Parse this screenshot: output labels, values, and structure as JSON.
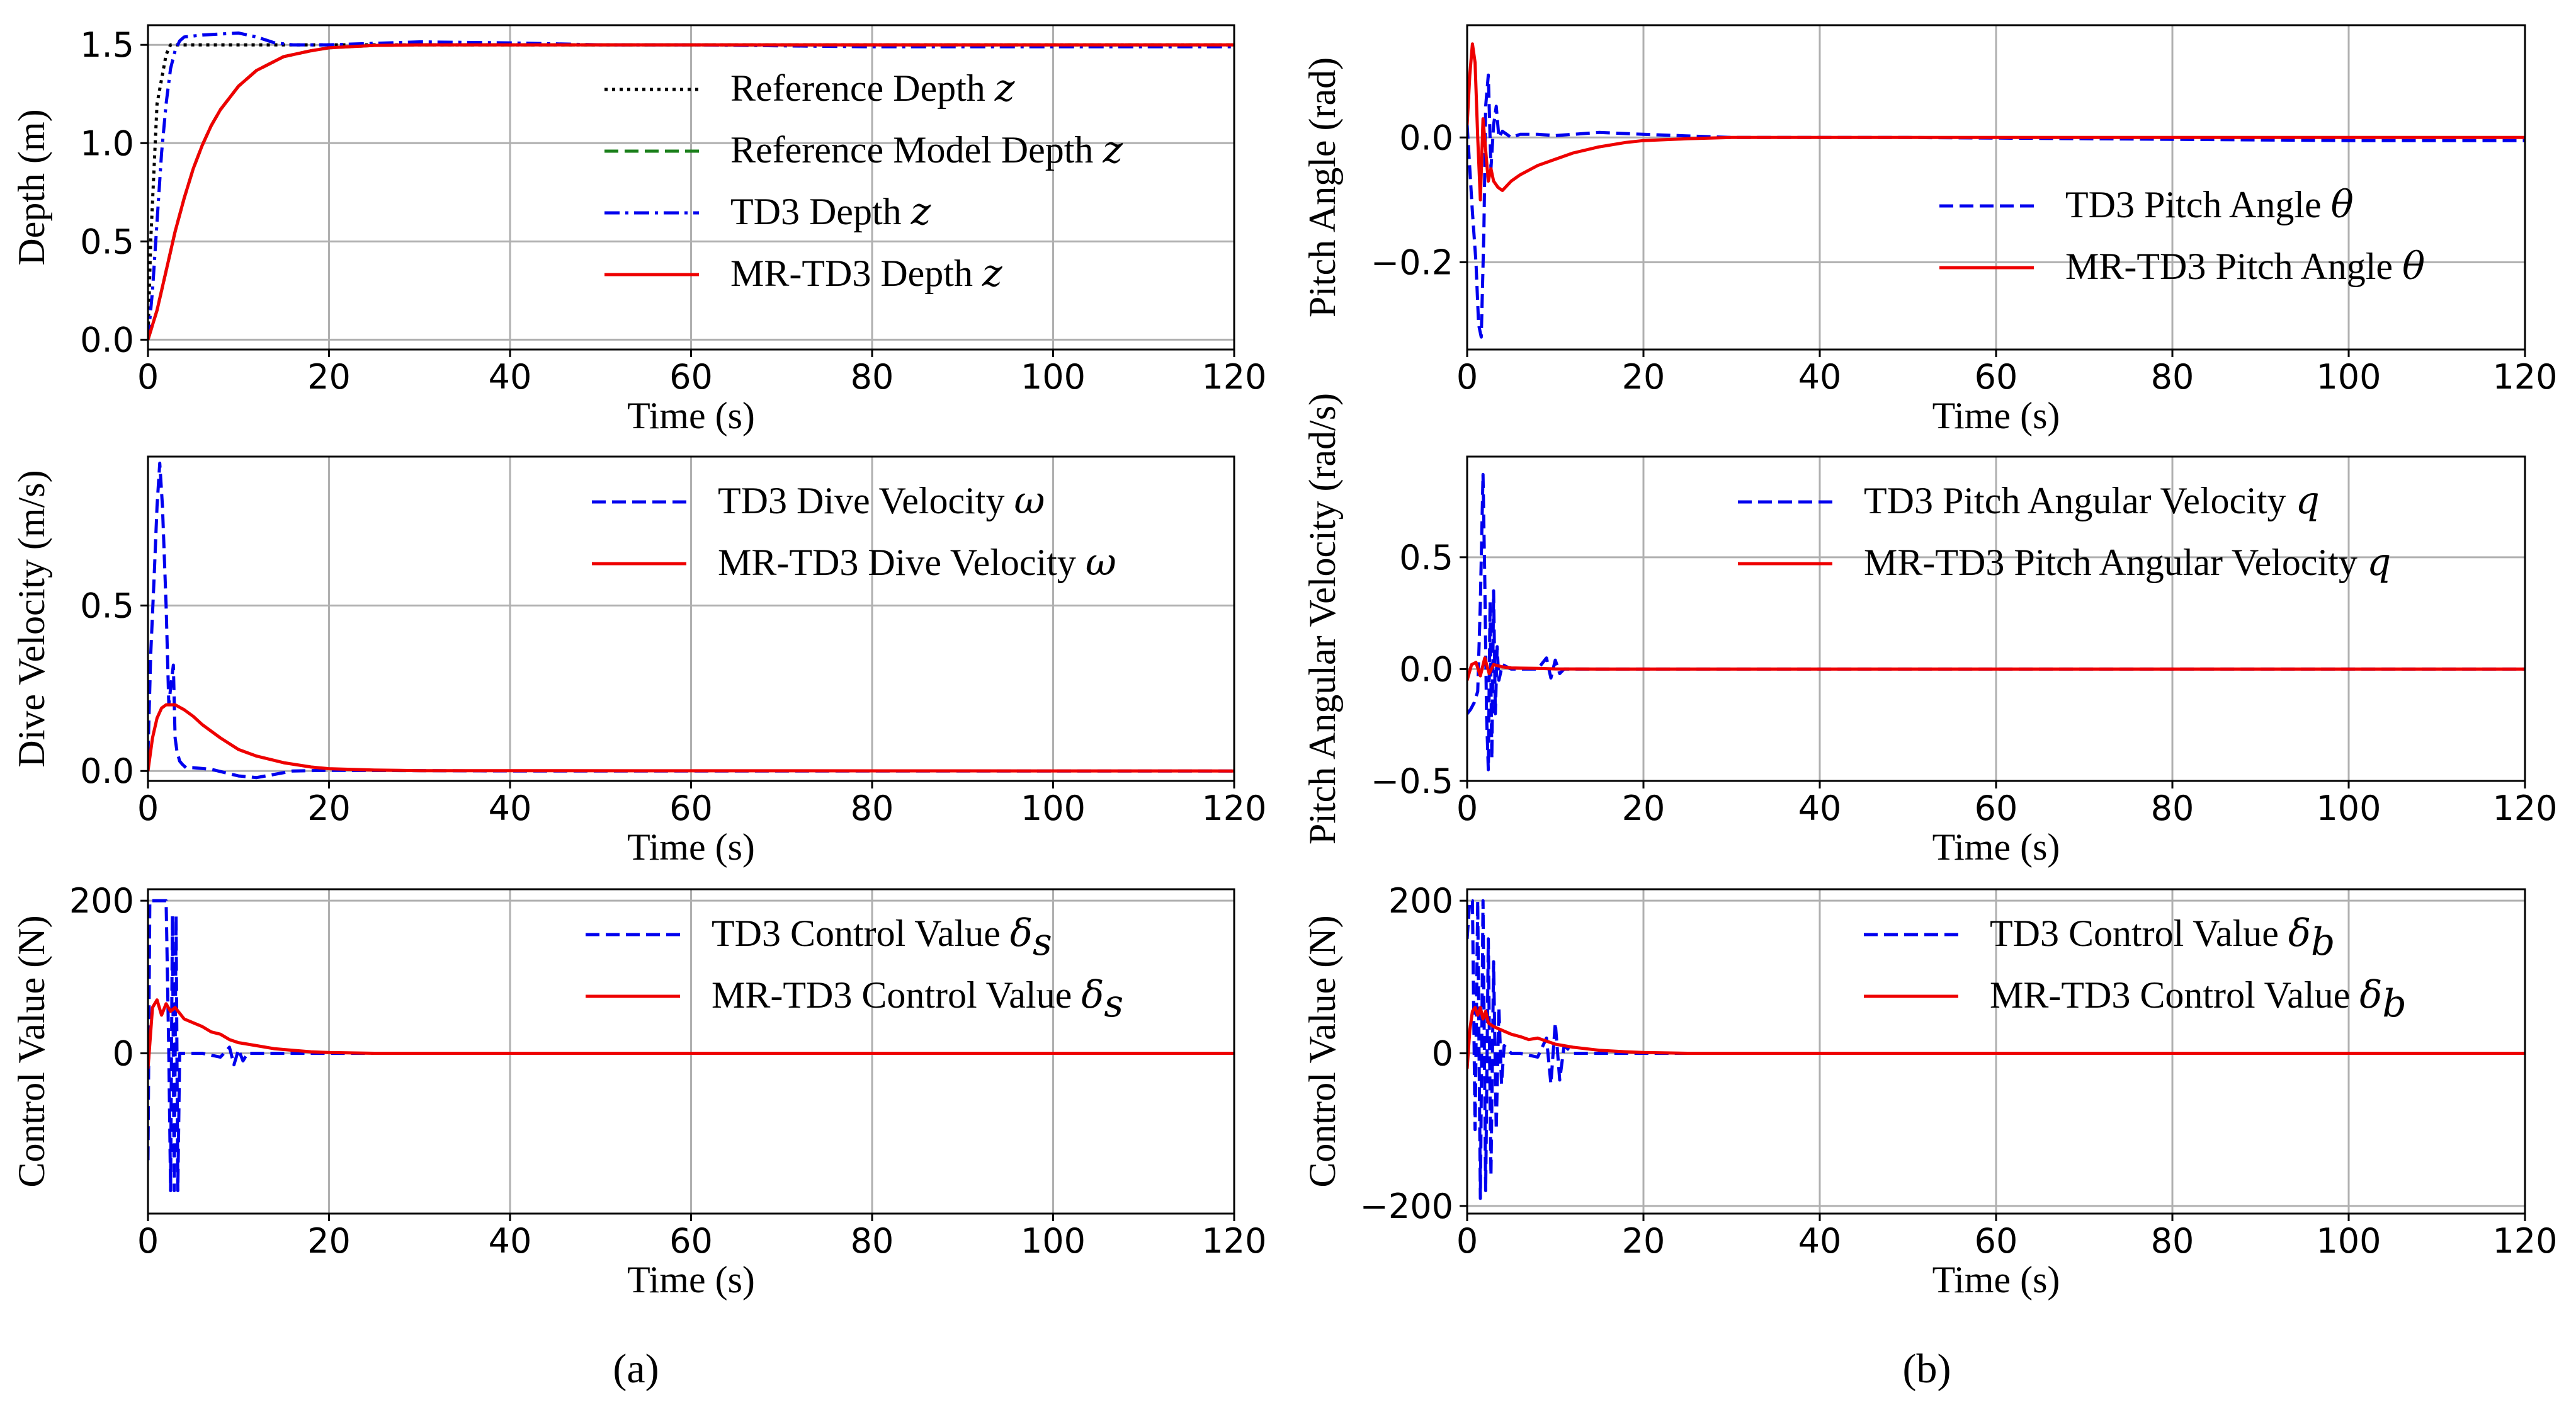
{
  "colors": {
    "reference": "#000000",
    "reference_model": "#1a7f1a",
    "td3": "#0000ee",
    "mrtd3": "#ee0000"
  },
  "captions": {
    "a": "(a)",
    "b": "(b)"
  },
  "chart_data": [
    {
      "id": "a1",
      "type": "line",
      "xlabel": "Time (s)",
      "ylabel": "Depth (m)",
      "xlim": [
        0,
        120
      ],
      "ylim": [
        -0.05,
        1.6
      ],
      "xticks": [
        0,
        20,
        40,
        60,
        80,
        100,
        120
      ],
      "xtick_labels": [
        "0",
        "20",
        "40",
        "60",
        "80",
        "100",
        "120"
      ],
      "yticks": [
        0,
        0.5,
        1.0,
        1.5
      ],
      "ytick_labels": [
        "0.0",
        "0.5",
        "1.0",
        "1.5"
      ],
      "legend_position": "center-right",
      "series": [
        {
          "name": "Reference Depth",
          "symbol": "z",
          "color": "#000000",
          "style": "dotted",
          "x": [
            0,
            0.3,
            1,
            2,
            2.5,
            120
          ],
          "y": [
            0,
            0.5,
            1.2,
            1.45,
            1.5,
            1.5
          ]
        },
        {
          "name": "Reference Model Depth",
          "symbol": "z",
          "color": "#1a7f1a",
          "style": "dashed",
          "x": [
            0,
            1,
            2,
            3,
            4,
            5,
            6,
            7,
            8,
            10,
            12,
            15,
            18,
            20,
            25,
            30,
            40,
            120
          ],
          "y": [
            0,
            0.15,
            0.35,
            0.55,
            0.72,
            0.87,
            0.99,
            1.09,
            1.17,
            1.29,
            1.37,
            1.44,
            1.47,
            1.485,
            1.497,
            1.5,
            1.5,
            1.5
          ]
        },
        {
          "name": "TD3 Depth",
          "symbol": "z",
          "color": "#0000ee",
          "style": "dashdot",
          "x": [
            0,
            0.5,
            1,
            1.5,
            2,
            2.5,
            3,
            3.5,
            4,
            6,
            8,
            10,
            12,
            14,
            16,
            20,
            30,
            40,
            50,
            60,
            80,
            100,
            120
          ],
          "y": [
            0,
            0.25,
            0.6,
            0.95,
            1.2,
            1.38,
            1.47,
            1.52,
            1.54,
            1.55,
            1.555,
            1.56,
            1.54,
            1.51,
            1.5,
            1.5,
            1.515,
            1.51,
            1.5,
            1.5,
            1.49,
            1.49,
            1.49
          ]
        },
        {
          "name": "MR-TD3 Depth",
          "symbol": "z",
          "color": "#ee0000",
          "style": "solid",
          "x": [
            0,
            1,
            2,
            3,
            4,
            5,
            6,
            7,
            8,
            10,
            12,
            15,
            18,
            20,
            25,
            30,
            40,
            60,
            80,
            100,
            120
          ],
          "y": [
            0,
            0.15,
            0.35,
            0.55,
            0.72,
            0.87,
            0.99,
            1.09,
            1.17,
            1.29,
            1.37,
            1.44,
            1.47,
            1.485,
            1.497,
            1.5,
            1.5,
            1.5,
            1.5,
            1.5,
            1.5
          ]
        }
      ]
    },
    {
      "id": "a2",
      "type": "line",
      "xlabel": "Time (s)",
      "ylabel": "Dive Velocity (m/s)",
      "xlim": [
        0,
        120
      ],
      "ylim": [
        -0.03,
        0.95
      ],
      "xticks": [
        0,
        20,
        40,
        60,
        80,
        100,
        120
      ],
      "xtick_labels": [
        "0",
        "20",
        "40",
        "60",
        "80",
        "100",
        "120"
      ],
      "yticks": [
        0,
        0.5
      ],
      "ytick_labels": [
        "0.0",
        "0.5"
      ],
      "legend_position": "top-right",
      "series": [
        {
          "name": "TD3 Dive Velocity",
          "symbol": "ω",
          "color": "#0000ee",
          "style": "dashed",
          "x": [
            0,
            0.3,
            0.7,
            1.0,
            1.3,
            1.6,
            2.0,
            2.3,
            2.5,
            2.8,
            3.0,
            3.2,
            3.5,
            3.8,
            4.2,
            5,
            7,
            10,
            12,
            14,
            16,
            20,
            40,
            60,
            80,
            100,
            120
          ],
          "y": [
            0.05,
            0.35,
            0.6,
            0.8,
            0.93,
            0.8,
            0.5,
            0.2,
            0.25,
            0.32,
            0.1,
            0.06,
            0.03,
            0.02,
            0.01,
            0.01,
            0.005,
            -0.015,
            -0.02,
            -0.01,
            0,
            0.002,
            0,
            0,
            0,
            0,
            0
          ]
        },
        {
          "name": "MR-TD3 Dive Velocity",
          "symbol": "ω",
          "color": "#ee0000",
          "style": "solid",
          "x": [
            0,
            0.5,
            1,
            1.5,
            2,
            2.5,
            3,
            4,
            5,
            6,
            8,
            10,
            12,
            15,
            18,
            20,
            25,
            30,
            120
          ],
          "y": [
            0,
            0.1,
            0.16,
            0.19,
            0.2,
            0.2,
            0.2,
            0.185,
            0.165,
            0.14,
            0.1,
            0.065,
            0.045,
            0.025,
            0.012,
            0.007,
            0.003,
            0.001,
            0
          ]
        }
      ]
    },
    {
      "id": "a3",
      "type": "line",
      "xlabel": "Time (s)",
      "ylabel": "Control Value (N)",
      "xlim": [
        0,
        120
      ],
      "ylim": [
        -210,
        215
      ],
      "xticks": [
        0,
        20,
        40,
        60,
        80,
        100,
        120
      ],
      "xtick_labels": [
        "0",
        "20",
        "40",
        "60",
        "80",
        "100",
        "120"
      ],
      "yticks": [
        0,
        200
      ],
      "ytick_labels": [
        "0",
        "200"
      ],
      "legend_position": "top-right",
      "series": [
        {
          "name": "TD3 Control Value",
          "symbol": "δ",
          "subscript": "s",
          "color": "#0000ee",
          "style": "dashed",
          "x": [
            0,
            0.2,
            0.4,
            0.6,
            1.0,
            1.5,
            2.0,
            2.3,
            2.5,
            2.7,
            2.9,
            3.1,
            3.3,
            3.5,
            3.8,
            4.2,
            5,
            6,
            8,
            9,
            9.5,
            10,
            10.5,
            11,
            12,
            14,
            16,
            18,
            20,
            120
          ],
          "y": [
            -140,
            200,
            200,
            200,
            200,
            200,
            200,
            0,
            -180,
            180,
            -180,
            180,
            -180,
            0,
            0,
            0,
            0,
            0,
            -5,
            8,
            -15,
            5,
            -10,
            0,
            0,
            0,
            0,
            0,
            0,
            0
          ]
        },
        {
          "name": "MR-TD3 Control Value",
          "symbol": "δ",
          "subscript": "s",
          "color": "#ee0000",
          "style": "solid",
          "x": [
            0,
            0.5,
            1.0,
            1.5,
            2.0,
            2.5,
            3.0,
            4,
            5,
            6,
            7,
            8,
            9,
            10,
            12,
            14,
            16,
            18,
            20,
            25,
            120
          ],
          "y": [
            -20,
            60,
            70,
            50,
            65,
            55,
            60,
            45,
            40,
            35,
            28,
            25,
            18,
            14,
            10,
            6,
            4,
            2,
            1,
            0,
            0
          ]
        }
      ]
    },
    {
      "id": "b1",
      "type": "line",
      "xlabel": "Time (s)",
      "ylabel": "Pitch Angle (rad)",
      "xlim": [
        0,
        120
      ],
      "ylim": [
        -0.34,
        0.18
      ],
      "xticks": [
        0,
        20,
        40,
        60,
        80,
        100,
        120
      ],
      "xtick_labels": [
        "0",
        "20",
        "40",
        "60",
        "80",
        "100",
        "120"
      ],
      "yticks": [
        -0.2,
        0.0
      ],
      "ytick_labels": [
        "−0.2",
        "0.0"
      ],
      "legend_position": "center-right",
      "series": [
        {
          "name": "TD3 Pitch Angle",
          "symbol": "θ",
          "color": "#0000ee",
          "style": "dashed",
          "x": [
            0,
            0.3,
            0.6,
            1.0,
            1.3,
            1.6,
            1.9,
            2.1,
            2.4,
            2.7,
            3.0,
            3.3,
            3.6,
            4.0,
            5,
            6,
            8,
            10,
            15,
            20,
            30,
            50,
            80,
            100,
            120
          ],
          "y": [
            0.02,
            -0.05,
            -0.12,
            -0.2,
            -0.3,
            -0.32,
            -0.15,
            0.05,
            0.1,
            -0.05,
            0.02,
            0.05,
            0.0,
            0.01,
            0.0,
            0.005,
            0.005,
            0.003,
            0.008,
            0.005,
            0.0,
            0.0,
            -0.003,
            -0.005,
            -0.005
          ]
        },
        {
          "name": "MR-TD3 Pitch Angle",
          "symbol": "θ",
          "color": "#ee0000",
          "style": "solid",
          "x": [
            0,
            0.3,
            0.6,
            0.9,
            1.2,
            1.5,
            1.8,
            2.1,
            2.4,
            2.7,
            3.0,
            3.5,
            4.0,
            5,
            6,
            8,
            10,
            12,
            15,
            18,
            20,
            25,
            30,
            40,
            60,
            120
          ],
          "y": [
            0.02,
            0.1,
            0.15,
            0.12,
            0.0,
            -0.1,
            0.03,
            -0.02,
            -0.07,
            -0.05,
            -0.07,
            -0.08,
            -0.085,
            -0.07,
            -0.06,
            -0.045,
            -0.035,
            -0.025,
            -0.015,
            -0.008,
            -0.005,
            -0.002,
            0,
            0,
            0,
            0
          ]
        }
      ]
    },
    {
      "id": "b2",
      "type": "line",
      "xlabel": "Time (s)",
      "ylabel": "Pitch Angular Velocity (rad/s)",
      "xlim": [
        0,
        120
      ],
      "ylim": [
        -0.5,
        0.95
      ],
      "xticks": [
        0,
        20,
        40,
        60,
        80,
        100,
        120
      ],
      "xtick_labels": [
        "0",
        "20",
        "40",
        "60",
        "80",
        "100",
        "120"
      ],
      "yticks": [
        -0.5,
        0.0,
        0.5
      ],
      "ytick_labels": [
        "−0.5",
        "0.0",
        "0.5"
      ],
      "legend_position": "top-right",
      "series": [
        {
          "name": "TD3 Pitch Angular Velocity",
          "symbol": "q",
          "color": "#0000ee",
          "style": "dashed",
          "x": [
            0,
            0.4,
            0.8,
            1.2,
            1.5,
            1.8,
            2.0,
            2.2,
            2.4,
            2.6,
            2.8,
            3.0,
            3.2,
            3.4,
            3.6,
            4.0,
            5,
            6,
            8,
            9,
            9.5,
            10,
            10.5,
            11,
            12,
            15,
            20,
            120
          ],
          "y": [
            -0.2,
            -0.18,
            -0.15,
            -0.1,
            0.3,
            0.87,
            0.4,
            -0.2,
            -0.45,
            0.3,
            -0.4,
            0.35,
            -0.2,
            0.1,
            -0.05,
            0.02,
            0.0,
            0.0,
            0.0,
            0.05,
            -0.04,
            0.04,
            -0.02,
            0.0,
            0.0,
            0.0,
            0.0,
            0.0
          ]
        },
        {
          "name": "MR-TD3 Pitch Angular Velocity",
          "symbol": "q",
          "color": "#ee0000",
          "style": "solid",
          "x": [
            0,
            0.5,
            1.0,
            1.5,
            2.0,
            2.5,
            3.0,
            4.0,
            5,
            8,
            10,
            15,
            20,
            120
          ],
          "y": [
            -0.05,
            0.02,
            0.03,
            -0.03,
            0.05,
            -0.02,
            0.02,
            0.01,
            0.005,
            0.003,
            0.001,
            0.0,
            0.0,
            0.0
          ]
        }
      ]
    },
    {
      "id": "b3",
      "type": "line",
      "xlabel": "Time (s)",
      "ylabel": "Control Value (N)",
      "xlim": [
        0,
        120
      ],
      "ylim": [
        -210,
        215
      ],
      "xticks": [
        0,
        20,
        40,
        60,
        80,
        100,
        120
      ],
      "xtick_labels": [
        "0",
        "20",
        "40",
        "60",
        "80",
        "100",
        "120"
      ],
      "yticks": [
        -200,
        0,
        200
      ],
      "ytick_labels": [
        "−200",
        "0",
        "200"
      ],
      "legend_position": "top-right",
      "series": [
        {
          "name": "TD3 Control Value",
          "symbol": "δ",
          "subscript": "b",
          "color": "#0000ee",
          "style": "dashed",
          "x": [
            0,
            0.3,
            0.6,
            0.9,
            1.2,
            1.5,
            1.8,
            2.1,
            2.4,
            2.7,
            3.0,
            3.3,
            3.6,
            3.9,
            4.2,
            5,
            6,
            8,
            9,
            9.5,
            10,
            10.5,
            11,
            12,
            15,
            18,
            20,
            120
          ],
          "y": [
            150,
            200,
            200,
            -100,
            200,
            -190,
            200,
            -180,
            150,
            -160,
            120,
            -100,
            60,
            -40,
            10,
            0,
            0,
            -5,
            20,
            -40,
            40,
            -35,
            10,
            0,
            0,
            0,
            0,
            0
          ]
        },
        {
          "name": "MR-TD3 Control Value",
          "symbol": "δ",
          "subscript": "b",
          "color": "#ee0000",
          "style": "solid",
          "x": [
            0,
            0.3,
            0.6,
            0.9,
            1.2,
            1.5,
            1.8,
            2.1,
            2.4,
            3.0,
            4.0,
            5,
            6,
            7,
            8,
            10,
            12,
            15,
            18,
            20,
            25,
            120
          ],
          "y": [
            -20,
            30,
            55,
            60,
            50,
            60,
            45,
            55,
            40,
            35,
            30,
            25,
            22,
            18,
            20,
            12,
            8,
            4,
            2,
            1,
            0,
            0
          ]
        }
      ]
    }
  ]
}
